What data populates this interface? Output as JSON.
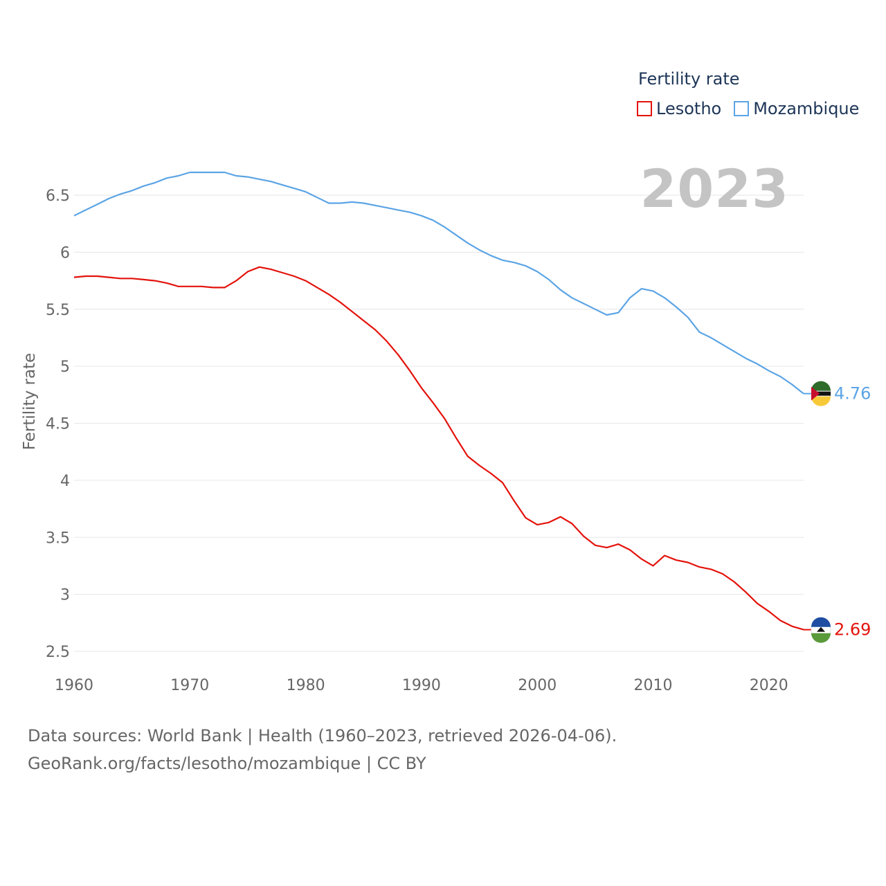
{
  "legend": {
    "title": "Fertility rate",
    "items": [
      {
        "label": "Lesotho",
        "color": "#e3120b"
      },
      {
        "label": "Mozambique",
        "color": "#5ba4e5"
      }
    ]
  },
  "year_label": "2023",
  "source": {
    "line1": "Data sources: World Bank | Health (1960–2023, retrieved 2026-04-06).",
    "line2": "GeoRank.org/facts/lesotho/mozambique | CC BY"
  },
  "chart_data": {
    "type": "line",
    "title": "Fertility rate",
    "xlabel": "",
    "ylabel": "Fertility rate",
    "xlim": [
      1960,
      2023
    ],
    "ylim": [
      2.5,
      6.75
    ],
    "yticks": [
      2.5,
      3,
      3.5,
      4,
      4.5,
      5,
      5.5,
      6,
      6.5
    ],
    "xticks": [
      1960,
      1970,
      1980,
      1990,
      2000,
      2010,
      2020
    ],
    "x": [
      1960,
      1961,
      1962,
      1963,
      1964,
      1965,
      1966,
      1967,
      1968,
      1969,
      1970,
      1971,
      1972,
      1973,
      1974,
      1975,
      1976,
      1977,
      1978,
      1979,
      1980,
      1981,
      1982,
      1983,
      1984,
      1985,
      1986,
      1987,
      1988,
      1989,
      1990,
      1991,
      1992,
      1993,
      1994,
      1995,
      1996,
      1997,
      1998,
      1999,
      2000,
      2001,
      2002,
      2003,
      2004,
      2005,
      2006,
      2007,
      2008,
      2009,
      2010,
      2011,
      2012,
      2013,
      2014,
      2015,
      2016,
      2017,
      2018,
      2019,
      2020,
      2021,
      2022,
      2023
    ],
    "series": [
      {
        "name": "Lesotho",
        "color": "#e3120b",
        "end_label": "2.69",
        "values": [
          5.78,
          5.79,
          5.79,
          5.78,
          5.77,
          5.77,
          5.76,
          5.75,
          5.73,
          5.7,
          5.7,
          5.7,
          5.69,
          5.69,
          5.75,
          5.83,
          5.87,
          5.85,
          5.82,
          5.79,
          5.75,
          5.69,
          5.63,
          5.56,
          5.48,
          5.4,
          5.32,
          5.22,
          5.1,
          4.96,
          4.81,
          4.68,
          4.54,
          4.37,
          4.21,
          4.13,
          4.06,
          3.98,
          3.82,
          3.67,
          3.61,
          3.63,
          3.68,
          3.62,
          3.51,
          3.43,
          3.41,
          3.44,
          3.39,
          3.31,
          3.25,
          3.34,
          3.3,
          3.28,
          3.24,
          3.22,
          3.18,
          3.11,
          3.02,
          2.92,
          2.85,
          2.77,
          2.72,
          2.69
        ]
      },
      {
        "name": "Mozambique",
        "color": "#5ba4e5",
        "end_label": "4.76",
        "values": [
          6.32,
          6.37,
          6.42,
          6.47,
          6.51,
          6.54,
          6.58,
          6.61,
          6.65,
          6.67,
          6.7,
          6.7,
          6.7,
          6.7,
          6.67,
          6.66,
          6.64,
          6.62,
          6.59,
          6.56,
          6.53,
          6.48,
          6.43,
          6.43,
          6.44,
          6.43,
          6.41,
          6.39,
          6.37,
          6.35,
          6.32,
          6.28,
          6.22,
          6.15,
          6.08,
          6.02,
          5.97,
          5.93,
          5.91,
          5.88,
          5.83,
          5.76,
          5.67,
          5.6,
          5.55,
          5.5,
          5.45,
          5.47,
          5.6,
          5.68,
          5.66,
          5.6,
          5.52,
          5.43,
          5.3,
          5.25,
          5.19,
          5.13,
          5.07,
          5.02,
          4.96,
          4.91,
          4.84,
          4.76
        ]
      }
    ]
  }
}
